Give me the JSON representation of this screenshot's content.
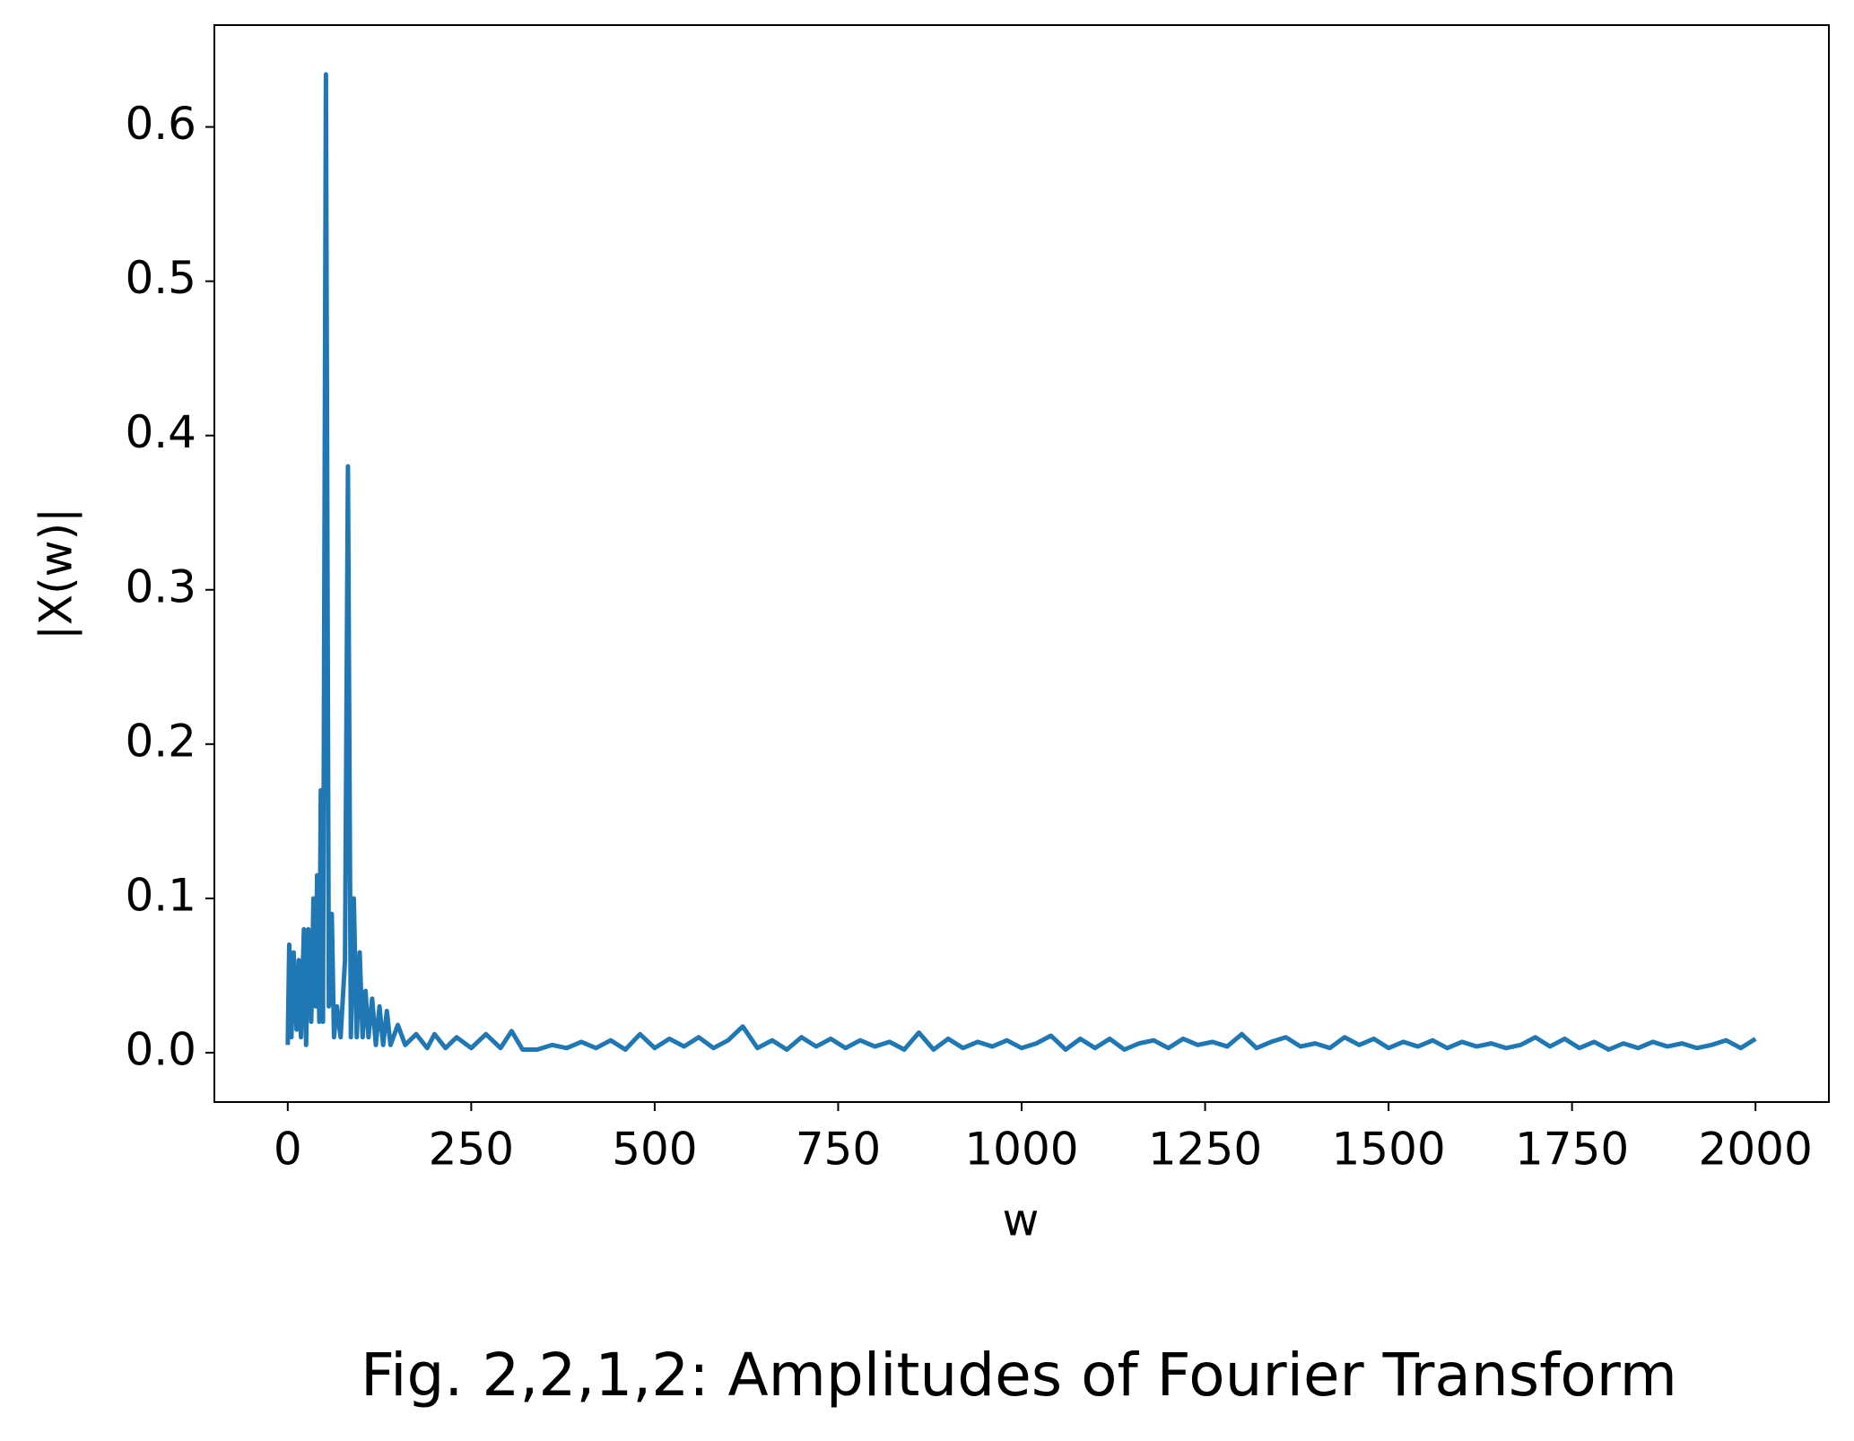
{
  "chart_data": {
    "type": "line",
    "title": "Fig. 2,2,1,2: Amplitudes of Fourier Transform",
    "x_label": "w",
    "y_label": "|X(w)|",
    "x": [
      0,
      2,
      5,
      8,
      12,
      15,
      18,
      22,
      25,
      28,
      32,
      35,
      38,
      40,
      43,
      45,
      48,
      52,
      56,
      60,
      63,
      67,
      72,
      78,
      82,
      86,
      90,
      94,
      98,
      102,
      106,
      110,
      115,
      120,
      125,
      130,
      135,
      140,
      150,
      160,
      175,
      190,
      200,
      215,
      230,
      250,
      270,
      290,
      305,
      320,
      340,
      360,
      380,
      400,
      420,
      440,
      460,
      480,
      500,
      520,
      540,
      560,
      580,
      600,
      620,
      640,
      660,
      680,
      700,
      720,
      740,
      760,
      780,
      800,
      820,
      840,
      860,
      880,
      900,
      920,
      940,
      960,
      980,
      1000,
      1020,
      1040,
      1060,
      1080,
      1100,
      1120,
      1140,
      1160,
      1180,
      1200,
      1220,
      1240,
      1260,
      1280,
      1300,
      1320,
      1340,
      1360,
      1380,
      1400,
      1420,
      1440,
      1460,
      1480,
      1500,
      1520,
      1540,
      1560,
      1580,
      1600,
      1620,
      1640,
      1660,
      1680,
      1700,
      1720,
      1740,
      1760,
      1780,
      1800,
      1820,
      1840,
      1860,
      1880,
      1900,
      1920,
      1940,
      1960,
      1980,
      2000
    ],
    "series": [
      {
        "name": "|X(w)|",
        "color": "#1f77b4",
        "values": [
          0.005,
          0.07,
          0.01,
          0.065,
          0.015,
          0.06,
          0.01,
          0.08,
          0.005,
          0.08,
          0.02,
          0.1,
          0.03,
          0.115,
          0.02,
          0.17,
          0.02,
          0.634,
          0.03,
          0.09,
          0.01,
          0.03,
          0.01,
          0.06,
          0.38,
          0.01,
          0.1,
          0.01,
          0.065,
          0.01,
          0.04,
          0.01,
          0.035,
          0.005,
          0.03,
          0.005,
          0.027,
          0.005,
          0.018,
          0.005,
          0.012,
          0.003,
          0.012,
          0.003,
          0.01,
          0.003,
          0.012,
          0.003,
          0.014,
          0.002,
          0.002,
          0.005,
          0.003,
          0.007,
          0.003,
          0.008,
          0.002,
          0.012,
          0.003,
          0.009,
          0.004,
          0.01,
          0.003,
          0.008,
          0.017,
          0.003,
          0.008,
          0.002,
          0.01,
          0.004,
          0.009,
          0.003,
          0.008,
          0.004,
          0.007,
          0.002,
          0.013,
          0.002,
          0.009,
          0.003,
          0.007,
          0.004,
          0.008,
          0.003,
          0.006,
          0.011,
          0.002,
          0.009,
          0.003,
          0.009,
          0.002,
          0.006,
          0.008,
          0.003,
          0.009,
          0.005,
          0.007,
          0.004,
          0.012,
          0.003,
          0.007,
          0.01,
          0.004,
          0.006,
          0.003,
          0.01,
          0.005,
          0.009,
          0.003,
          0.007,
          0.004,
          0.008,
          0.003,
          0.007,
          0.004,
          0.006,
          0.003,
          0.005,
          0.01,
          0.004,
          0.009,
          0.003,
          0.007,
          0.002,
          0.006,
          0.003,
          0.007,
          0.004,
          0.006,
          0.003,
          0.005,
          0.008,
          0.003,
          0.009
        ]
      }
    ],
    "xlim": [
      -100,
      2100
    ],
    "ylim": [
      -0.032,
      0.666
    ],
    "xticks": [
      0,
      250,
      500,
      750,
      1000,
      1250,
      1500,
      1750,
      2000
    ],
    "yticks": [
      {
        "value": 0,
        "label": "0.0"
      },
      0.1,
      0.2,
      0.3,
      0.4,
      0.5,
      0.6
    ]
  }
}
